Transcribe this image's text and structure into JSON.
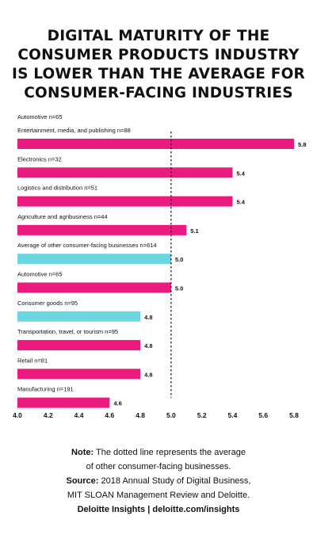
{
  "title_lines": [
    "DIGITAL MATURITY OF THE",
    "CONSUMER PRODUCTS INDUSTRY",
    "IS LOWER THAN THE AVERAGE FOR",
    "CONSUMER-FACING INDUSTRIES"
  ],
  "top_label": "Automotive n=65",
  "colors": {
    "industry": "#ea1a7f",
    "average": "#6ad6e0",
    "reference_line": "#222222"
  },
  "chart_data": {
    "type": "bar",
    "orientation": "horizontal",
    "categories": [
      "Entertainment, media, and publishing n=88",
      "Electronics n=32",
      "Logistics and distribution n=51",
      "Agriculture and agribusiness n=44",
      "Average of other consumer-facing businesses n=614",
      "Automotive n=65",
      "Consumer goods n=95",
      "Transportation, travel, or tourism n=95",
      "Retail n=81",
      "Manufacturing n=191"
    ],
    "values": [
      5.8,
      5.4,
      5.4,
      5.1,
      5.0,
      5.0,
      4.8,
      4.8,
      4.8,
      4.6
    ],
    "value_labels": [
      "5.8",
      "5.4",
      "5.4",
      "5.1",
      "5.0",
      "5.0",
      "4.8",
      "4.8",
      "4.8",
      "4.6"
    ],
    "highlight": [
      "industry",
      "industry",
      "industry",
      "industry",
      "average",
      "industry",
      "average",
      "industry",
      "industry",
      "industry"
    ],
    "reference_line": 5.0,
    "xlim": [
      4.0,
      5.8
    ],
    "xticks": [
      "4.0",
      "4.2",
      "4.4",
      "4.6",
      "4.8",
      "5.0",
      "5.2",
      "5.4",
      "5.6",
      "5.8"
    ]
  },
  "notes": {
    "note_label": "Note:",
    "note_line1": " The dotted line represents the average",
    "note_line2": "of other consumer-facing businesses.",
    "source_label": "Source:",
    "source_line1": " 2018 Annual Study of Digital Business,",
    "source_line2": "MIT SLOAN Management Review and Deloitte.",
    "footer": "Deloitte Insights | deloitte.com/insights"
  }
}
